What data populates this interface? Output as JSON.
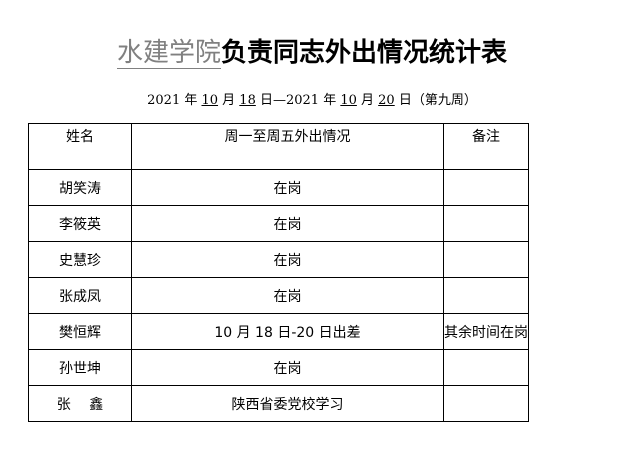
{
  "title": {
    "org": "水建学院",
    "rest": "负责同志外出情况统计表"
  },
  "date": {
    "y1": "2021",
    "m1": "10",
    "d1": "18",
    "y2": "2021",
    "m2": "10",
    "d2": "20",
    "week": "（第九周）",
    "nian": " 年 ",
    "yue": " 月 ",
    "ri": " 日—",
    "ri2": " 日"
  },
  "table": {
    "headers": [
      "姓名",
      "周一至周五外出情况",
      "备注"
    ],
    "rows": [
      [
        "胡笑涛",
        "在岗",
        ""
      ],
      [
        "李筱英",
        "在岗",
        ""
      ],
      [
        "史慧珍",
        "在岗",
        ""
      ],
      [
        "张成凤",
        "在岗",
        ""
      ],
      [
        "樊恒辉",
        "10 月 18 日-20 日出差",
        "其余时间在岗"
      ],
      [
        "孙世坤",
        "在岗",
        ""
      ],
      [
        "张　 鑫",
        "陕西省委党校学习",
        ""
      ]
    ]
  }
}
